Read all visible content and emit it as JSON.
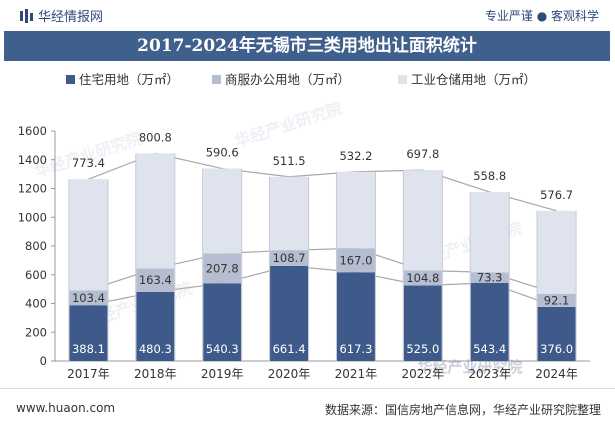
{
  "header": {
    "brand": "华经情报网",
    "slogan": "专业严谨 ● 客观科学"
  },
  "footer": {
    "site": "www.huaon.com",
    "source": "数据来源：国信房地产信息网，华经产业研究院整理"
  },
  "watermark": "华经产业研究院",
  "colors": {
    "residential": "#3e5a8a",
    "commercial": "#b5bdd0",
    "industrial": "#dfe3ee",
    "title_bg": "#3f5f8c",
    "connector": "#a8a8a8"
  },
  "chart_data": {
    "type": "bar",
    "stacked": true,
    "title": "2017-2024年无锡市三类用地出让面积统计",
    "xlabel": "",
    "ylabel": "",
    "ylim": [
      0,
      1600
    ],
    "yticks": [
      0,
      200,
      400,
      600,
      800,
      1000,
      1200,
      1400,
      1600
    ],
    "grid": false,
    "legend": "top",
    "categories": [
      "2017年",
      "2018年",
      "2019年",
      "2020年",
      "2021年",
      "2022年",
      "2023年",
      "2024年"
    ],
    "series": [
      {
        "name": "住宅用地（万㎡）",
        "color": "#3e5a8a",
        "values": [
          388.1,
          480.3,
          540.3,
          661.4,
          617.3,
          525.0,
          543.4,
          376.0
        ],
        "labels": [
          "388.1",
          "480.3",
          "540.3",
          "661.4",
          "617.3",
          "525.0",
          "543.4",
          "376.0"
        ]
      },
      {
        "name": "商服办公用地（万㎡）",
        "color": "#b5bdd0",
        "values": [
          103.4,
          163.4,
          207.8,
          108.7,
          167.0,
          104.8,
          73.3,
          92.1
        ],
        "labels": [
          "103.4",
          "163.4",
          "207.8",
          "108.7",
          "167.0",
          "104.8",
          "73.3",
          "92.1"
        ]
      },
      {
        "name": "工业仓储用地（万㎡）",
        "color": "#dfe3ee",
        "values": [
          773.4,
          800.8,
          590.6,
          511.5,
          532.2,
          697.8,
          558.8,
          576.7
        ],
        "labels": [
          "773.4",
          "800.8",
          "590.6",
          "511.5",
          "532.2",
          "697.8",
          "558.8",
          "576.7"
        ]
      }
    ]
  }
}
